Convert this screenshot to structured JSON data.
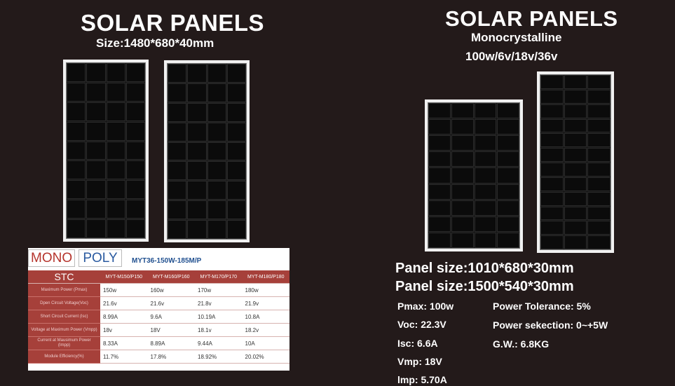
{
  "left": {
    "title": "SOLAR PANELS",
    "size": "Size:1480*680*40mm"
  },
  "right": {
    "title": "SOLAR PANELS",
    "subtitle": "Monocrystalline",
    "voltages": "100w/6v/18v/36v",
    "panel_size_1": "Panel size:1010*680*30mm",
    "panel_size_2": "Panel size:1500*540*30mm",
    "specs": {
      "pmax": "Pmax: 100w",
      "voc": "Voc: 22.3V",
      "isc": "Isc: 6.6A",
      "vmp": "Vmp: 18V",
      "imp": "lmp: 5.70A",
      "tolerance": "Power Tolerance: 5%",
      "selection": "Power sekection: 0~+5W",
      "gw": "G.W.: 6.8KG"
    }
  },
  "table": {
    "tab_mono": "MONO",
    "tab_poly": "POLY",
    "model": "MYT36-150W-185M/P",
    "header": [
      "STC",
      "MYT-M150/P150",
      "MYT-M160/P160",
      "MYT-M170/P170",
      "MYT-M180/P180"
    ],
    "rows": [
      {
        "label": "Maximum Power (Pmax)",
        "values": [
          "150w",
          "160w",
          "170w",
          "180w"
        ]
      },
      {
        "label": "Dpen Circuit Voltage(Voc)",
        "values": [
          "21.6v",
          "21.6v",
          "21.8v",
          "21.9v"
        ]
      },
      {
        "label": "Short Circuit Current (Isc)",
        "values": [
          "8.99A",
          "9.6A",
          "10.19A",
          "10.8A"
        ]
      },
      {
        "label": "Voltage at Maximum Power (Vmpp)",
        "values": [
          "18v",
          "18V",
          "18.1v",
          "18.2v"
        ]
      },
      {
        "label": "Current at Mausimum Power (Impp)",
        "values": [
          "8.33A",
          "8.89A",
          "9.44A",
          "10A"
        ]
      },
      {
        "label": "Module Efficiency(%)",
        "values": [
          "11.7%",
          "17.8%",
          "18.92%",
          "20.02%"
        ]
      }
    ]
  }
}
